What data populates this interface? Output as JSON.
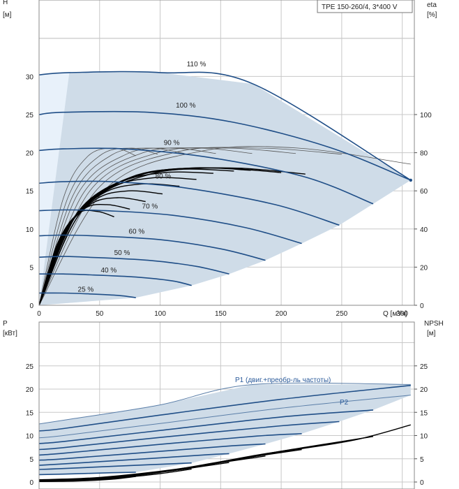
{
  "chart_data": [
    {
      "type": "line",
      "title": "TPE 150-260/4, 3*400 V",
      "xlabel": "Q [м³/ч]",
      "ylabel": "H",
      "ylabel_unit": "[м]",
      "y2label": "eta",
      "y2label_unit": "[%]",
      "xlim": [
        0,
        310
      ],
      "ylim": [
        0,
        40
      ],
      "y2lim": [
        0,
        140
      ],
      "xticks": [
        0,
        50,
        100,
        150,
        200,
        250,
        300
      ],
      "yticks": [
        0,
        5,
        10,
        15,
        20,
        25,
        30
      ],
      "y2ticks": [
        0,
        20,
        40,
        60,
        80,
        100
      ],
      "grid": true,
      "colors": {
        "curve": "#1f4e87",
        "area": "#cfdce8",
        "area_light": "#e8f1fa",
        "eta": "#000000",
        "eta_thin": "#555555",
        "grid": "#c8c8c8"
      },
      "speed_curves": [
        {
          "label": "110 %",
          "points": [
            [
              0,
              30.2
            ],
            [
              25,
              30.5
            ],
            [
              100,
              30.5
            ],
            [
              177,
              29.0
            ],
            [
              307,
              16.4
            ]
          ]
        },
        {
          "label": "100 %",
          "points": [
            [
              0,
              25.0
            ],
            [
              20,
              25.3
            ],
            [
              90,
              25.3
            ],
            [
              160,
              24.0
            ],
            [
              240,
              20.7
            ],
            [
              307,
              16.4
            ]
          ]
        },
        {
          "label": "90 %",
          "points": [
            [
              0,
              20.3
            ],
            [
              20,
              20.5
            ],
            [
              70,
              20.5
            ],
            [
              140,
              19.4
            ],
            [
              220,
              16.8
            ],
            [
              276,
              13.3
            ]
          ]
        },
        {
          "label": "80 %",
          "points": [
            [
              0,
              16.0
            ],
            [
              20,
              16.2
            ],
            [
              60,
              16.2
            ],
            [
              120,
              15.4
            ],
            [
              195,
              13.2
            ],
            [
              248,
              10.5
            ]
          ]
        },
        {
          "label": "70 %",
          "points": [
            [
              0,
              12.4
            ],
            [
              20,
              12.5
            ],
            [
              55,
              12.4
            ],
            [
              110,
              11.8
            ],
            [
              170,
              10.2
            ],
            [
              217,
              8.1
            ]
          ]
        },
        {
          "label": "60 %",
          "points": [
            [
              0,
              9.1
            ],
            [
              20,
              9.2
            ],
            [
              45,
              9.1
            ],
            [
              100,
              8.6
            ],
            [
              150,
              7.4
            ],
            [
              187,
              5.9
            ]
          ]
        },
        {
          "label": "50 %",
          "points": [
            [
              0,
              6.3
            ],
            [
              20,
              6.4
            ],
            [
              40,
              6.3
            ],
            [
              90,
              5.9
            ],
            [
              130,
              5.1
            ],
            [
              157,
              4.1
            ]
          ]
        },
        {
          "label": "40 %",
          "points": [
            [
              0,
              4.1
            ],
            [
              20,
              4.1
            ],
            [
              40,
              4.0
            ],
            [
              80,
              3.7
            ],
            [
              110,
              3.2
            ],
            [
              126,
              2.6
            ]
          ]
        },
        {
          "label": "25 %",
          "points": [
            [
              0,
              1.6
            ],
            [
              20,
              1.6
            ],
            [
              40,
              1.5
            ],
            [
              65,
              1.3
            ],
            [
              80,
              1.0
            ]
          ]
        }
      ],
      "eta_curves": [
        {
          "points": [
            [
              0,
              0
            ],
            [
              15,
              8
            ],
            [
              32,
              12
            ],
            [
              48,
              12.3
            ],
            [
              62,
              11.6
            ]
          ]
        },
        {
          "points": [
            [
              0,
              0
            ],
            [
              17,
              8.5
            ],
            [
              37,
              12.6
            ],
            [
              56,
              13.2
            ],
            [
              75,
              12.6
            ]
          ]
        },
        {
          "points": [
            [
              0,
              0
            ],
            [
              19,
              9
            ],
            [
              42,
              13.2
            ],
            [
              65,
              14.1
            ],
            [
              88,
              13.6
            ]
          ]
        },
        {
          "points": [
            [
              0,
              0
            ],
            [
              21,
              9.5
            ],
            [
              47,
              13.9
            ],
            [
              74,
              15.0
            ],
            [
              102,
              14.6
            ]
          ]
        },
        {
          "points": [
            [
              0,
              0
            ],
            [
              23,
              10
            ],
            [
              52,
              14.6
            ],
            [
              84,
              15.9
            ],
            [
              116,
              15.6
            ]
          ]
        },
        {
          "points": [
            [
              0,
              0
            ],
            [
              25,
              10.5
            ],
            [
              58,
              15.3
            ],
            [
              94,
              16.7
            ],
            [
              130,
              16.5
            ]
          ]
        },
        {
          "points": [
            [
              0,
              0
            ],
            [
              27,
              11
            ],
            [
              64,
              15.9
            ],
            [
              104,
              17.4
            ],
            [
              144,
              17.3
            ]
          ]
        },
        {
          "points": [
            [
              0,
              0
            ],
            [
              29,
              11.5
            ],
            [
              70,
              16.4
            ],
            [
              115,
              17.8
            ],
            [
              161,
              17.6
            ]
          ]
        },
        {
          "points": [
            [
              0,
              0
            ],
            [
              31,
              12
            ],
            [
              76,
              16.8
            ],
            [
              126,
              18.0
            ],
            [
              175,
              17.7
            ]
          ]
        },
        {
          "points": [
            [
              0,
              0
            ],
            [
              33,
              12.3
            ],
            [
              84,
              17.1
            ],
            [
              142,
              18.0
            ],
            [
              200,
              17.4
            ]
          ]
        },
        {
          "points": [
            [
              0,
              0
            ],
            [
              36,
              12.5
            ],
            [
              92,
              17.2
            ],
            [
              158,
              18.0
            ],
            [
              220,
              17.2
            ]
          ]
        }
      ],
      "eta_thin_curves": [
        {
          "points": [
            [
              0,
              0
            ],
            [
              20,
              14
            ],
            [
              40,
              19.5
            ],
            [
              62,
              20.6
            ],
            [
              80,
              19.6
            ]
          ]
        },
        {
          "points": [
            [
              0,
              0
            ],
            [
              24,
              14.2
            ],
            [
              50,
              19.6
            ],
            [
              76,
              20.6
            ],
            [
              98,
              19.8
            ]
          ]
        },
        {
          "points": [
            [
              0,
              0
            ],
            [
              28,
              14.4
            ],
            [
              60,
              19.7
            ],
            [
              92,
              20.6
            ],
            [
              120,
              19.9
            ]
          ]
        },
        {
          "points": [
            [
              0,
              0
            ],
            [
              32,
              14.6
            ],
            [
              72,
              19.8
            ],
            [
              110,
              20.6
            ],
            [
              146,
              19.9
            ]
          ]
        },
        {
          "points": [
            [
              0,
              0
            ],
            [
              37,
              14.8
            ],
            [
              84,
              19.9
            ],
            [
              132,
              20.6
            ],
            [
              176,
              19.9
            ]
          ]
        },
        {
          "points": [
            [
              0,
              0
            ],
            [
              42,
              15
            ],
            [
              98,
              20.0
            ],
            [
              156,
              20.6
            ],
            [
              212,
              19.9
            ]
          ]
        },
        {
          "points": [
            [
              0,
              0
            ],
            [
              48,
              15.2
            ],
            [
              114,
              20.1
            ],
            [
              184,
              20.6
            ],
            [
              250,
              19.8
            ]
          ]
        },
        {
          "points": [
            [
              0,
              0
            ],
            [
              56,
              15.4
            ],
            [
              134,
              20.2
            ],
            [
              214,
              20.6
            ],
            [
              307,
              18.5
            ]
          ]
        }
      ]
    },
    {
      "type": "line",
      "ylabel": "P",
      "ylabel_unit": "[кВт]",
      "y2label": "NPSH",
      "y2label_unit": "[м]",
      "xlim": [
        0,
        310
      ],
      "ylim": [
        0,
        30
      ],
      "y2lim": [
        0,
        30
      ],
      "yticks": [
        0,
        5,
        10,
        15,
        20,
        25
      ],
      "y2ticks": [
        0,
        5,
        10,
        15,
        20,
        25
      ],
      "grid": true,
      "series_labels": {
        "p1": "P1 (двиг.+преобр-ль частоты)",
        "p2": "P2"
      },
      "power_curves": [
        {
          "points": [
            [
              0,
              12.5
            ],
            [
              25,
              13.5
            ],
            [
              100,
              16.6
            ],
            [
              177,
              21.0
            ],
            [
              307,
              21.0
            ]
          ]
        },
        {
          "points": [
            [
              0,
              11.0
            ],
            [
              20,
              11.5
            ],
            [
              100,
              14.4
            ],
            [
              200,
              17.8
            ],
            [
              307,
              20.8
            ]
          ]
        },
        {
          "points": [
            [
              0,
              9.5
            ],
            [
              20,
              10.0
            ],
            [
              100,
              12.6
            ],
            [
              200,
              15.9
            ],
            [
              307,
              18.7
            ]
          ]
        },
        {
          "points": [
            [
              0,
              8.3
            ],
            [
              20,
              8.7
            ],
            [
              100,
              11.1
            ],
            [
              200,
              14.0
            ],
            [
              276,
              15.5
            ]
          ]
        },
        {
          "points": [
            [
              0,
              7.0
            ],
            [
              20,
              7.4
            ],
            [
              100,
              9.6
            ],
            [
              200,
              12.1
            ],
            [
              248,
              13.0
            ]
          ]
        },
        {
          "points": [
            [
              0,
              5.8
            ],
            [
              20,
              6.2
            ],
            [
              100,
              8.1
            ],
            [
              180,
              9.9
            ],
            [
              217,
              10.4
            ]
          ]
        },
        {
          "points": [
            [
              0,
              4.7
            ],
            [
              20,
              5.0
            ],
            [
              100,
              6.6
            ],
            [
              160,
              7.8
            ],
            [
              187,
              8.2
            ]
          ]
        },
        {
          "points": [
            [
              0,
              3.6
            ],
            [
              20,
              3.9
            ],
            [
              100,
              5.2
            ],
            [
              140,
              5.9
            ],
            [
              157,
              6.1
            ]
          ]
        },
        {
          "points": [
            [
              0,
              2.7
            ],
            [
              20,
              2.9
            ],
            [
              80,
              3.6
            ],
            [
              126,
              4.1
            ]
          ]
        },
        {
          "points": [
            [
              0,
              1.6
            ],
            [
              20,
              1.7
            ],
            [
              60,
              2.0
            ],
            [
              80,
              2.1
            ]
          ]
        }
      ],
      "npsh_curves": [
        {
          "points": [
            [
              0,
              0.5
            ],
            [
              50,
              1.0
            ],
            [
              120,
              3.0
            ],
            [
              200,
              6.5
            ],
            [
              260,
              9.0
            ],
            [
              307,
              12.3
            ]
          ]
        },
        {
          "points": [
            [
              0,
              0.4
            ],
            [
              50,
              0.9
            ],
            [
              120,
              2.8
            ],
            [
              190,
              6.2
            ],
            [
              276,
              9.8
            ]
          ]
        },
        {
          "points": [
            [
              0,
              0.3
            ],
            [
              50,
              0.8
            ],
            [
              110,
              2.5
            ],
            [
              180,
              5.8
            ],
            [
              248,
              8.5
            ]
          ]
        },
        {
          "points": [
            [
              0,
              0.3
            ],
            [
              40,
              0.6
            ],
            [
              100,
              2.2
            ],
            [
              160,
              4.8
            ],
            [
              217,
              7.0
            ]
          ]
        },
        {
          "points": [
            [
              0,
              0.2
            ],
            [
              40,
              0.5
            ],
            [
              90,
              1.8
            ],
            [
              140,
              3.8
            ],
            [
              187,
              5.6
            ]
          ]
        },
        {
          "points": [
            [
              0,
              0.2
            ],
            [
              40,
              0.4
            ],
            [
              80,
              1.4
            ],
            [
              120,
              2.8
            ],
            [
              157,
              4.2
            ]
          ]
        },
        {
          "points": [
            [
              0,
              0.1
            ],
            [
              30,
              0.3
            ],
            [
              70,
              1.0
            ],
            [
              100,
              1.8
            ],
            [
              126,
              2.8
            ]
          ]
        },
        {
          "points": [
            [
              0,
              0.1
            ],
            [
              30,
              0.2
            ],
            [
              60,
              0.6
            ],
            [
              80,
              1.2
            ]
          ]
        }
      ]
    }
  ]
}
